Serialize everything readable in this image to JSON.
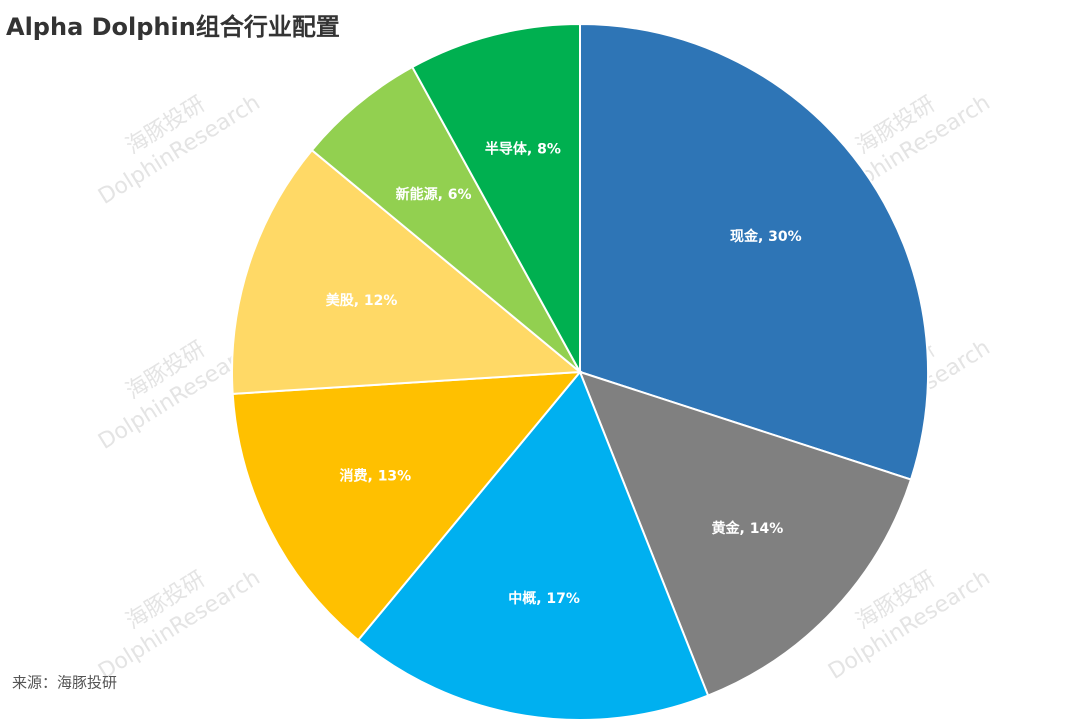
{
  "chart_data": {
    "type": "pie",
    "title": "Alpha Dolphin组合行业配置",
    "categories": [
      "现金",
      "黄金",
      "中概",
      "消费",
      "美股",
      "新能源",
      "半导体"
    ],
    "values": [
      30,
      14,
      17,
      13,
      12,
      6,
      8
    ],
    "value_labels": [
      "现金, 30%",
      "黄金, 14%",
      "中概, 17%",
      "消费, 13%",
      "美股, 12%",
      "新能源, 6%",
      "半导体, 8%"
    ],
    "colors": [
      "#2e75b6",
      "#808080",
      "#00b0f0",
      "#ffc000",
      "#ffd966",
      "#92d050",
      "#00b050"
    ],
    "source": "来源：海豚投研",
    "watermark": {
      "cn": "海豚投研",
      "en": "DolphinResearch"
    }
  }
}
